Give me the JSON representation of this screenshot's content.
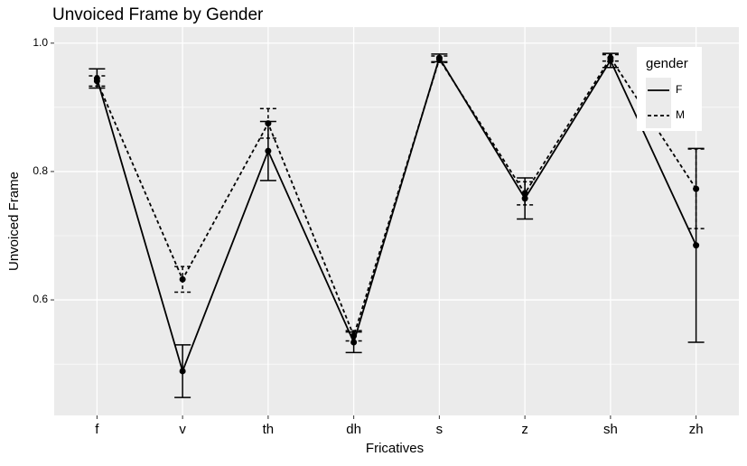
{
  "chart_data": {
    "type": "line",
    "title": "Unvoiced Frame by Gender",
    "x_label": "Fricatives",
    "y_label": "Unvoiced Frame",
    "categories": [
      "f",
      "v",
      "th",
      "dh",
      "s",
      "z",
      "sh",
      "zh"
    ],
    "series": [
      {
        "name": "F",
        "color": "#000000",
        "linetype": "solid",
        "values": [
          0.945,
          0.489,
          0.832,
          0.534,
          0.977,
          0.758,
          0.973,
          0.685
        ],
        "errors": [
          0.015,
          0.041,
          0.046,
          0.016,
          0.006,
          0.032,
          0.011,
          0.151
        ]
      },
      {
        "name": "M",
        "color": "#000000",
        "linetype": "dashed",
        "values": [
          0.941,
          0.632,
          0.875,
          0.544,
          0.975,
          0.766,
          0.977,
          0.773
        ],
        "errors": [
          0.008,
          0.02,
          0.023,
          0.008,
          0.005,
          0.018,
          0.005,
          0.062
        ]
      }
    ],
    "legend_title": "gender",
    "legend_position": "top-right",
    "ylim": [
      0.42,
      1.025
    ],
    "yticks": [
      0.6,
      0.8,
      {
        "value": 1.0,
        "label": "1.0"
      }
    ],
    "grid": true
  }
}
